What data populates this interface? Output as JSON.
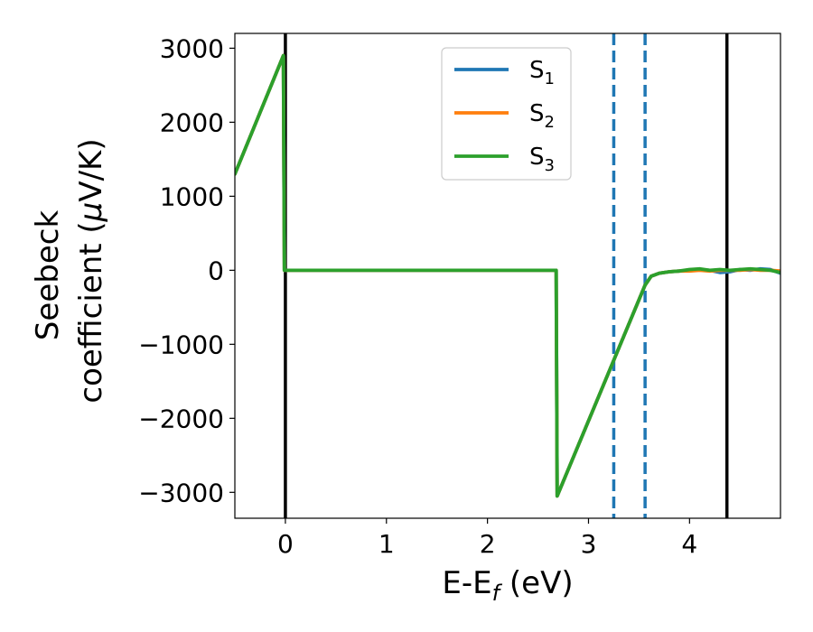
{
  "chart_data": {
    "type": "line",
    "xlabel": {
      "main": "E-E",
      "sub": "f",
      "unit": " (eV)"
    },
    "ylabel": {
      "line1": "Seebeck",
      "line2_prefix": "coefficient  (",
      "mu": "μ",
      "line2_suffix": "V/K)"
    },
    "xlim": [
      -0.5,
      4.9
    ],
    "ylim": [
      -3350,
      3200
    ],
    "x_ticks": [
      0,
      1,
      2,
      3,
      4
    ],
    "x_tick_labels": [
      "0",
      "1",
      "2",
      "3",
      "4"
    ],
    "y_ticks": [
      -3000,
      -2000,
      -1000,
      0,
      1000,
      2000,
      3000
    ],
    "y_tick_labels": [
      "−3000",
      "−2000",
      "−1000",
      "0",
      "1000",
      "2000",
      "3000"
    ],
    "grid": false,
    "legend_position": "upper-center",
    "series": [
      {
        "name": "S",
        "sub": "1",
        "color": "#1f77b4",
        "x": [
          -0.5,
          -0.02,
          -0.01,
          2.68,
          2.69,
          3.56,
          3.62,
          3.7,
          3.8,
          3.9,
          4.0,
          4.1,
          4.2,
          4.3,
          4.4,
          4.5,
          4.6,
          4.7,
          4.8,
          4.9
        ],
        "y": [
          1300,
          2900,
          0,
          0,
          -3050,
          -200,
          -80,
          -40,
          -20,
          -10,
          0,
          10,
          0,
          -30,
          -20,
          10,
          0,
          20,
          10,
          -40
        ]
      },
      {
        "name": "S",
        "sub": "2",
        "color": "#ff7f0e",
        "x": [
          -0.5,
          -0.02,
          -0.01,
          2.68,
          2.69,
          3.56,
          3.62,
          3.7,
          3.8,
          3.9,
          4.0,
          4.1,
          4.2,
          4.3,
          4.4,
          4.5,
          4.6,
          4.7,
          4.8,
          4.9
        ],
        "y": [
          1300,
          2900,
          0,
          0,
          -3050,
          -200,
          -80,
          -40,
          -20,
          -10,
          -10,
          0,
          -10,
          0,
          0,
          0,
          10,
          0,
          0,
          -10
        ]
      },
      {
        "name": "S",
        "sub": "3",
        "color": "#2ca02c",
        "x": [
          -0.5,
          -0.02,
          -0.01,
          2.68,
          2.69,
          3.56,
          3.62,
          3.7,
          3.8,
          3.9,
          4.0,
          4.1,
          4.2,
          4.3,
          4.4,
          4.5,
          4.6,
          4.7,
          4.8,
          4.9
        ],
        "y": [
          1300,
          2900,
          0,
          0,
          -3050,
          -200,
          -80,
          -40,
          -20,
          -10,
          10,
          20,
          0,
          10,
          0,
          10,
          20,
          10,
          0,
          -30
        ]
      }
    ],
    "vertical_lines": [
      {
        "x": 0.0,
        "style": "solid",
        "color": "#000000"
      },
      {
        "x": 4.37,
        "style": "solid",
        "color": "#000000"
      },
      {
        "x": 3.25,
        "style": "dashed",
        "color": "#1f77b4"
      },
      {
        "x": 3.56,
        "style": "dashed",
        "color": "#1f77b4"
      }
    ]
  }
}
